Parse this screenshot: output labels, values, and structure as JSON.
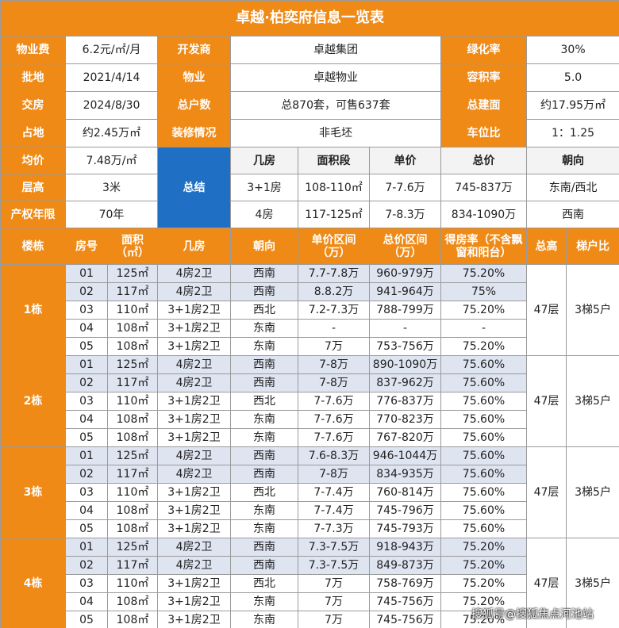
{
  "title": "卓越·柏奕府信息一览表",
  "info": [
    [
      "物业费",
      "6.2元/㎡/月",
      "开发商",
      "卓越集团",
      "绿化率",
      "30%"
    ],
    [
      "批地",
      "2021/4/14",
      "物业",
      "卓越物业",
      "容积率",
      "5.0"
    ],
    [
      "交房",
      "2024/8/30",
      "总户数",
      "总870套，可售637套",
      "总建面",
      "约17.95万㎡"
    ],
    [
      "占地",
      "约2.45万㎡",
      "装修情况",
      "非毛坯",
      "车位比",
      "1：1.25"
    ]
  ],
  "left": [
    [
      "均价",
      "7.48万/㎡"
    ],
    [
      "层高",
      "3米"
    ],
    [
      "产权年限",
      "70年"
    ]
  ],
  "summary_label": "总结",
  "summary_header": [
    "几房",
    "面积段",
    "单价",
    "总价",
    "朝向"
  ],
  "summary_rows": [
    [
      "3+1房",
      "108-110㎡",
      "7-7.6万",
      "745-837万",
      "东南/西北"
    ],
    [
      "4房",
      "117-125㎡",
      "7-8.3万",
      "834-1090万",
      "西南"
    ]
  ],
  "header": [
    "楼栋",
    "房号",
    "面积（㎡）",
    "几房",
    "朝向",
    "单价区间（万）",
    "总价区间（万）",
    "得房率（不含飘窗和阳台）",
    "总高",
    "梯户比"
  ],
  "buildings": [
    {
      "name": "1栋",
      "floors": "47层",
      "elevator": "3梯5户",
      "units": [
        [
          "01",
          "125㎡",
          "4房2卫",
          "西南",
          "7.7-7.8万",
          "960-979万",
          "75.20%"
        ],
        [
          "02",
          "117㎡",
          "4房2卫",
          "西南",
          "8.8.2万",
          "941-964万",
          "75%"
        ],
        [
          "03",
          "110㎡",
          "3+1房2卫",
          "西北",
          "7.2-7.3万",
          "788-799万",
          "75.20%"
        ],
        [
          "04",
          "108㎡",
          "3+1房2卫",
          "东南",
          "-",
          "-",
          "-"
        ],
        [
          "05",
          "108㎡",
          "3+1房2卫",
          "东南",
          "7万",
          "753-756万",
          "75.20%"
        ]
      ]
    },
    {
      "name": "2栋",
      "floors": "47层",
      "elevator": "3梯5户",
      "units": [
        [
          "01",
          "125㎡",
          "4房2卫",
          "西南",
          "7-8万",
          "890-1090万",
          "75.60%"
        ],
        [
          "02",
          "117㎡",
          "4房2卫",
          "西南",
          "7-8万",
          "837-962万",
          "75.60%"
        ],
        [
          "03",
          "110㎡",
          "3+1房2卫",
          "西北",
          "7-7.6万",
          "776-837万",
          "75.60%"
        ],
        [
          "04",
          "108㎡",
          "3+1房2卫",
          "东南",
          "7-7.6万",
          "770-823万",
          "75.60%"
        ],
        [
          "05",
          "108㎡",
          "3+1房2卫",
          "东南",
          "7-7.6万",
          "767-820万",
          "75.60%"
        ]
      ]
    },
    {
      "name": "3栋",
      "floors": "47层",
      "elevator": "3梯5户",
      "units": [
        [
          "01",
          "125㎡",
          "4房2卫",
          "西南",
          "7.6-8.3万",
          "946-1044万",
          "75.60%"
        ],
        [
          "02",
          "117㎡",
          "4房2卫",
          "西南",
          "7-8万",
          "834-935万",
          "75.60%"
        ],
        [
          "03",
          "110㎡",
          "3+1房2卫",
          "西北",
          "7-7.4万",
          "760-814万",
          "75.60%"
        ],
        [
          "04",
          "108㎡",
          "3+1房2卫",
          "东南",
          "7-7.4万",
          "745-796万",
          "75.60%"
        ],
        [
          "05",
          "108㎡",
          "3+1房2卫",
          "东南",
          "7-7.3万",
          "745-793万",
          "75.60%"
        ]
      ]
    },
    {
      "name": "4栋",
      "floors": "47层",
      "elevator": "3梯5户",
      "units": [
        [
          "01",
          "125㎡",
          "4房2卫",
          "西南",
          "7.3-7.5万",
          "918-943万",
          "75.20%"
        ],
        [
          "02",
          "117㎡",
          "4房2卫",
          "西南",
          "7.3-7.5万",
          "849-873万",
          "75.20%"
        ],
        [
          "03",
          "110㎡",
          "3+1房2卫",
          "西北",
          "7万",
          "758-769万",
          "75.20%"
        ],
        [
          "04",
          "108㎡",
          "3+1房2卫",
          "东南",
          "7万",
          "745-756万",
          "75.20%"
        ],
        [
          "05",
          "108㎡",
          "3+1房2卫",
          "东南",
          "7万",
          "745-756万",
          "75.20%"
        ]
      ]
    }
  ],
  "watermark": "搜狐号@搜狐焦点河池站"
}
